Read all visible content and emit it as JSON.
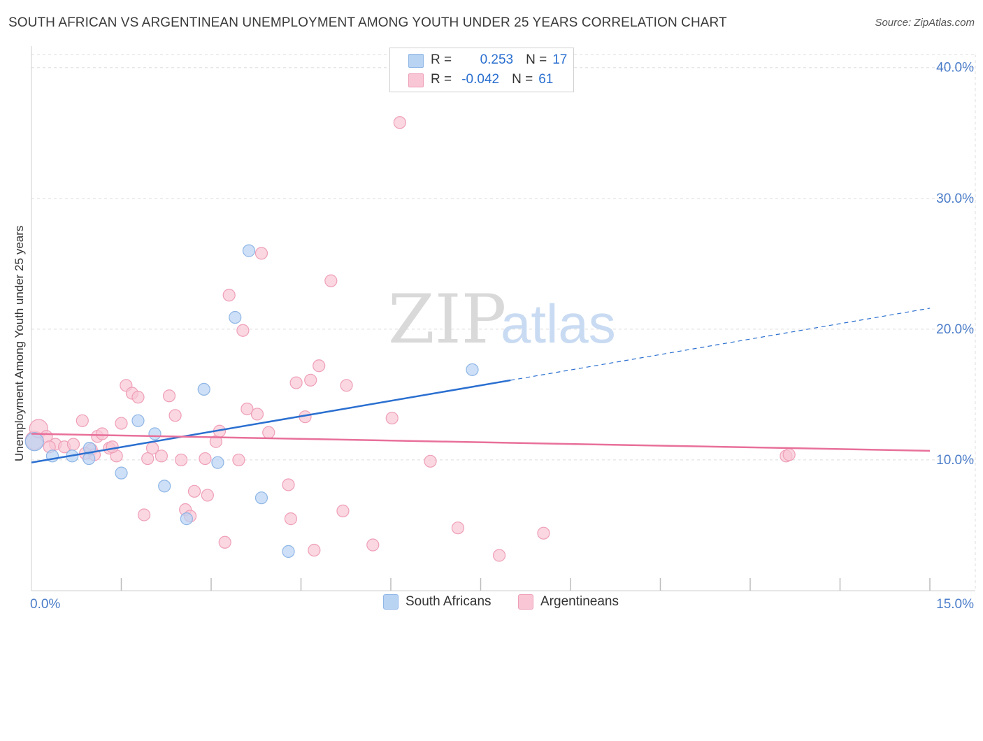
{
  "title": "SOUTH AFRICAN VS ARGENTINEAN UNEMPLOYMENT AMONG YOUTH UNDER 25 YEARS CORRELATION CHART",
  "source": "Source: ZipAtlas.com",
  "watermark": {
    "part1": "ZIP",
    "part2": "atlas"
  },
  "legend": {
    "rows": [
      {
        "r_label": "R =",
        "r_value": "0.253",
        "n_label": "N =",
        "n_value": "17"
      },
      {
        "r_label": "R =",
        "r_value": "-0.042",
        "n_label": "N =",
        "n_value": "61"
      }
    ]
  },
  "bottom_legend": [
    "South Africans",
    "Argentineans"
  ],
  "colors": {
    "blue_fill": "#b9d3f3",
    "blue_stroke": "#8fb6e6",
    "blue_line": "#2a6fd0",
    "pink_fill": "#f8c6d4",
    "pink_stroke": "#ef9fb8",
    "pink_line": "#e8709a",
    "tick_label": "#4a7cc9",
    "grid": "#dddddd"
  },
  "chart_data": {
    "type": "scatter",
    "title": "SOUTH AFRICAN VS ARGENTINEAN UNEMPLOYMENT AMONG YOUTH UNDER 25 YEARS CORRELATION CHART",
    "xlabel": "",
    "ylabel": "Unemployment Among Youth under 25 years",
    "xlim": [
      0,
      15
    ],
    "ylim": [
      0,
      41
    ],
    "x_tick_labels": [
      "0.0%",
      "15.0%"
    ],
    "y_ticks": [
      10,
      20,
      30,
      40
    ],
    "y_tick_labels": [
      "10.0%",
      "20.0%",
      "30.0%",
      "40.0%"
    ],
    "grid": true,
    "legend_position": "top-center",
    "series": [
      {
        "name": "South Africans",
        "R": 0.253,
        "N": 17,
        "trend": {
          "x0": 0.0,
          "y0": 9.8,
          "x_solid_end": 8.0,
          "x1": 15.0,
          "y1": 21.6
        },
        "points": [
          [
            0.05,
            11.4
          ],
          [
            0.35,
            10.3
          ],
          [
            0.68,
            10.3
          ],
          [
            0.96,
            10.1
          ],
          [
            0.97,
            10.9
          ],
          [
            1.5,
            9.0
          ],
          [
            1.78,
            13.0
          ],
          [
            2.06,
            12.0
          ],
          [
            2.22,
            8.0
          ],
          [
            2.59,
            5.5
          ],
          [
            2.88,
            15.4
          ],
          [
            3.11,
            9.8
          ],
          [
            3.4,
            20.9
          ],
          [
            3.63,
            26.0
          ],
          [
            3.84,
            7.1
          ],
          [
            4.29,
            3.0
          ],
          [
            7.36,
            16.9
          ]
        ]
      },
      {
        "name": "Argentineans",
        "R": -0.042,
        "N": 61,
        "trend": {
          "x0": 0.0,
          "y0": 12.0,
          "x1": 15.0,
          "y1": 10.7
        },
        "points": [
          [
            0.05,
            11.5
          ],
          [
            0.12,
            12.4
          ],
          [
            0.25,
            11.8
          ],
          [
            0.4,
            11.2
          ],
          [
            0.55,
            11.0
          ],
          [
            0.7,
            11.2
          ],
          [
            0.85,
            13.0
          ],
          [
            1.0,
            10.8
          ],
          [
            1.05,
            10.4
          ],
          [
            1.1,
            11.8
          ],
          [
            1.18,
            12.0
          ],
          [
            1.3,
            10.9
          ],
          [
            1.42,
            10.3
          ],
          [
            1.5,
            12.8
          ],
          [
            1.58,
            15.7
          ],
          [
            1.68,
            15.1
          ],
          [
            1.78,
            14.8
          ],
          [
            1.88,
            5.8
          ],
          [
            1.94,
            10.1
          ],
          [
            2.02,
            10.9
          ],
          [
            2.17,
            10.3
          ],
          [
            2.3,
            14.9
          ],
          [
            2.4,
            13.4
          ],
          [
            2.5,
            10.0
          ],
          [
            2.57,
            6.2
          ],
          [
            2.65,
            5.7
          ],
          [
            2.72,
            7.6
          ],
          [
            2.9,
            10.1
          ],
          [
            2.94,
            7.3
          ],
          [
            3.08,
            11.4
          ],
          [
            3.14,
            12.2
          ],
          [
            3.23,
            3.7
          ],
          [
            3.3,
            22.6
          ],
          [
            3.46,
            10.0
          ],
          [
            3.53,
            19.9
          ],
          [
            3.6,
            13.9
          ],
          [
            3.77,
            13.5
          ],
          [
            3.84,
            25.8
          ],
          [
            3.96,
            12.1
          ],
          [
            4.29,
            8.1
          ],
          [
            4.33,
            5.5
          ],
          [
            4.42,
            15.9
          ],
          [
            4.57,
            13.3
          ],
          [
            4.66,
            16.1
          ],
          [
            4.72,
            3.1
          ],
          [
            4.8,
            17.2
          ],
          [
            5.0,
            23.7
          ],
          [
            5.2,
            6.1
          ],
          [
            5.26,
            15.7
          ],
          [
            5.7,
            3.5
          ],
          [
            6.02,
            13.2
          ],
          [
            6.15,
            35.8
          ],
          [
            6.66,
            9.9
          ],
          [
            7.12,
            4.8
          ],
          [
            7.81,
            2.7
          ],
          [
            8.55,
            4.4
          ],
          [
            12.6,
            10.3
          ],
          [
            12.65,
            10.4
          ],
          [
            0.3,
            11.0
          ],
          [
            0.9,
            10.5
          ],
          [
            1.35,
            11.0
          ]
        ]
      }
    ]
  }
}
